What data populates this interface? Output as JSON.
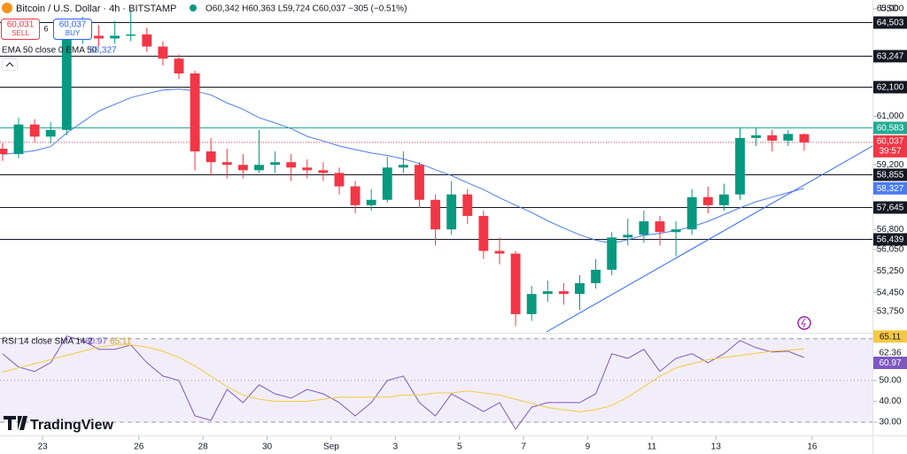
{
  "header": {
    "title": "Bitcoin / U.S. Dollar · 4h · BITSTAMP",
    "ohlc": "O60,342 H60,363 L59,724 C60,037 −305 (−0.51%)",
    "sell_price": "60,031",
    "sell": "SELL",
    "spread": "6",
    "buy_price": "60,037",
    "buy": "BUY",
    "currency": "USD",
    "brand": "TradingView"
  },
  "chart_data": [
    {
      "type": "candlestick",
      "x": [
        21.75,
        22.25,
        22.75,
        23.25,
        23.75,
        24.25,
        24.75,
        25.25,
        25.75,
        26.25,
        26.75,
        27.25,
        27.75,
        28.25,
        28.75,
        29.25,
        29.75,
        30.25,
        30.75,
        31.25,
        31.75,
        32.25,
        32.75,
        33.25,
        33.75,
        34.25,
        34.75,
        35.25,
        35.75,
        36.25,
        36.75,
        37.25,
        37.75,
        38.25,
        38.75,
        39.25,
        39.75,
        40.25,
        40.75,
        41.25,
        41.75,
        42.25,
        42.75,
        43.25,
        43.75,
        44.25,
        44.75,
        45.25,
        45.75,
        46.25,
        46.75
      ],
      "open": [
        59800,
        59600,
        60700,
        60250,
        60500,
        63850,
        64000,
        63900,
        64000,
        64050,
        63600,
        63150,
        62600,
        59700,
        59300,
        59200,
        59000,
        59200,
        59300,
        59100,
        59000,
        58900,
        58400,
        57700,
        57900,
        59100,
        59200,
        57900,
        56800,
        58100,
        57300,
        56000,
        55900,
        53650,
        54400,
        54500,
        54400,
        54800,
        55300,
        56500,
        56600,
        57100,
        56700,
        56800,
        58000,
        57700,
        58100,
        60200,
        60300,
        60100,
        60342
      ],
      "high": [
        60000,
        60950,
        60900,
        60800,
        64100,
        64700,
        64400,
        64550,
        64900,
        64300,
        63800,
        63300,
        62700,
        60200,
        59800,
        59600,
        60500,
        59700,
        59600,
        59400,
        59300,
        59100,
        58600,
        58300,
        59500,
        59700,
        59300,
        58100,
        58600,
        58300,
        57500,
        56500,
        56000,
        54700,
        54900,
        54800,
        55100,
        55700,
        56700,
        57200,
        57500,
        57300,
        57100,
        58300,
        58400,
        58500,
        60600,
        60600,
        60500,
        60500,
        60363
      ],
      "low": [
        59350,
        59450,
        60050,
        60000,
        60300,
        63700,
        63600,
        63700,
        63800,
        63400,
        62900,
        62400,
        59000,
        58800,
        58700,
        58700,
        58900,
        58900,
        58600,
        58700,
        58600,
        58100,
        57400,
        57500,
        57800,
        58900,
        57600,
        56200,
        56600,
        57000,
        55700,
        55500,
        53200,
        53400,
        54100,
        54000,
        53800,
        54600,
        55100,
        56200,
        56300,
        56200,
        55800,
        56600,
        57400,
        57500,
        57900,
        59900,
        59700,
        59900,
        59724
      ],
      "close": [
        59600,
        60700,
        60250,
        60500,
        63850,
        64000,
        63900,
        64000,
        64050,
        63600,
        63150,
        62600,
        59700,
        59300,
        59200,
        59000,
        59200,
        59300,
        59100,
        59000,
        58900,
        58400,
        57700,
        57900,
        59100,
        59200,
        57900,
        56800,
        58100,
        57300,
        56000,
        55900,
        53650,
        54400,
        54500,
        54400,
        54800,
        55300,
        56500,
        56600,
        57100,
        56700,
        56800,
        58000,
        57700,
        58100,
        60200,
        60300,
        60100,
        60350,
        60037
      ],
      "up_color": "#089981",
      "down_color": "#f23645",
      "series": [
        {
          "name": "EMA 50 close 0 EMA 50",
          "color": "#4a7cf0",
          "value_labels": "58,327",
          "values": [
            59590,
            59650,
            59730,
            59880,
            60380,
            60800,
            61200,
            61450,
            61700,
            61850,
            61980,
            62020,
            61950,
            61800,
            61500,
            61270,
            60950,
            60760,
            60550,
            60260,
            60090,
            59900,
            59770,
            59640,
            59550,
            59420,
            59250,
            59020,
            58800,
            58530,
            58280,
            57980,
            57700,
            57430,
            57120,
            56850,
            56600,
            56400,
            56280,
            56420,
            56580,
            56650,
            56760,
            56900,
            57100,
            57350,
            57600,
            57830,
            58000,
            58170,
            58327
          ]
        }
      ],
      "last_price": {
        "value": 60037,
        "label": "60,037"
      },
      "countdown": "39:57",
      "levels": [
        {
          "value": 64503,
          "label": "64,503"
        },
        {
          "value": 63247,
          "label": "63,247"
        },
        {
          "value": 62100,
          "label": "62,100"
        },
        {
          "value": 60583,
          "label": "60,583",
          "color": "#22ab94"
        },
        {
          "value": 58855,
          "label": "58,855"
        },
        {
          "value": 57645,
          "label": "57,645"
        },
        {
          "value": 56439,
          "label": "56,439"
        }
      ],
      "xlim": [
        21.67,
        48.88
      ],
      "ylim": [
        52990,
        65330
      ],
      "xticks": [
        23,
        26,
        28,
        30,
        {
          "value": 32,
          "label": "Sep"
        },
        {
          "value": 34,
          "label": "3"
        },
        {
          "value": 36,
          "label": "5"
        },
        {
          "value": 38,
          "label": "7"
        },
        {
          "value": 40,
          "label": "9"
        },
        {
          "value": 42,
          "label": "11"
        },
        {
          "value": 44,
          "label": "13"
        },
        {
          "value": 47,
          "label": "16"
        }
      ],
      "yticks": [
        {
          "value": 65000,
          "label": "65,000"
        },
        {
          "value": 61000,
          "label": "61,000"
        },
        {
          "value": 59200,
          "label": "59,200"
        },
        {
          "value": 56800,
          "label": "56,800"
        },
        {
          "value": 56050,
          "label": "56,050"
        },
        {
          "value": 55250,
          "label": "55,250"
        },
        {
          "value": 54450,
          "label": "54,450"
        },
        {
          "value": 53750,
          "label": "53,750"
        }
      ]
    },
    {
      "type": "line",
      "title": "RSI 14 close SMA 14 2",
      "x": [
        21.75,
        22.25,
        22.75,
        23.25,
        23.75,
        24.25,
        24.75,
        25.25,
        25.75,
        26.25,
        26.75,
        27.25,
        27.75,
        28.25,
        28.75,
        29.25,
        29.75,
        30.25,
        30.75,
        31.25,
        31.75,
        32.25,
        32.75,
        33.25,
        33.75,
        34.25,
        34.75,
        35.25,
        35.75,
        36.25,
        36.75,
        37.25,
        37.75,
        38.25,
        38.75,
        39.25,
        39.75,
        40.25,
        40.75,
        41.25,
        41.75,
        42.25,
        42.75,
        43.25,
        43.75,
        44.25,
        44.75,
        45.25,
        45.75,
        46.25,
        46.75
      ],
      "series": [
        {
          "color": "#7e57c2",
          "values": [
            62.8,
            56.4,
            54.3,
            58.5,
            71.3,
            69.1,
            64.9,
            64.9,
            67.0,
            58.5,
            52.1,
            50.0,
            33.0,
            30.9,
            45.7,
            39.4,
            47.9,
            43.6,
            41.5,
            45.7,
            43.6,
            39.4,
            33.0,
            39.4,
            50.0,
            52.1,
            39.4,
            33.0,
            43.6,
            39.4,
            35.1,
            39.4,
            26.6,
            37.2,
            39.4,
            39.4,
            39.4,
            43.6,
            62.8,
            60.6,
            64.9,
            54.3,
            60.6,
            62.8,
            58.5,
            62.8,
            69.1,
            65.7,
            63.6,
            64.0,
            60.97
          ]
        },
        {
          "color": "#f5c842",
          "values": [
            54,
            56,
            58,
            60,
            62,
            64,
            66,
            67,
            67,
            66,
            64,
            61,
            57,
            52,
            47,
            43,
            41,
            40,
            40,
            40,
            41,
            42,
            42,
            42,
            42,
            43,
            43,
            44,
            44,
            45,
            44,
            43,
            41,
            39,
            37,
            36,
            35,
            36,
            38,
            42,
            47,
            52,
            56,
            58,
            60,
            61,
            62,
            63,
            64,
            64.5,
            65.11
          ]
        }
      ],
      "marker": 62.36,
      "bands": [
        70,
        50,
        30
      ],
      "xlim": [
        21.67,
        48.88
      ],
      "ylim": [
        24.5,
        72
      ],
      "yticks": [
        {
          "value": 50,
          "label": "50.00"
        },
        {
          "value": 40,
          "label": "40.00"
        },
        {
          "value": 30,
          "label": "30.00"
        }
      ]
    }
  ]
}
